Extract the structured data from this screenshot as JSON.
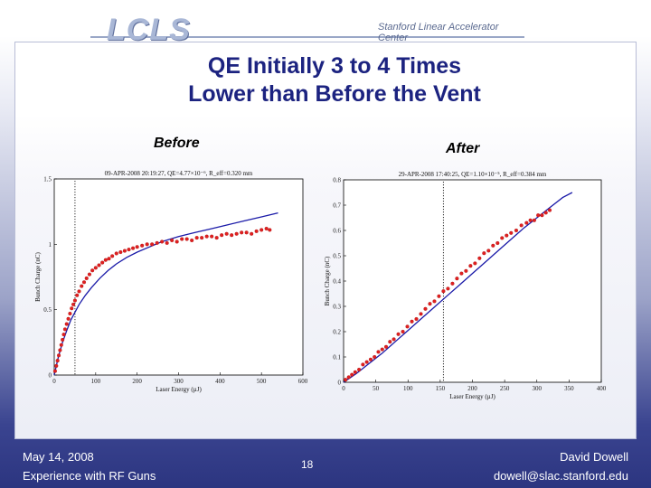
{
  "header": {
    "logo_text": "LCLS",
    "logo_subtitle": "Stanford Linear Accelerator Center"
  },
  "slide": {
    "title_line1": "QE Initially 3 to 4 Times",
    "title_line2": "Lower than Before the Vent",
    "label_before": "Before",
    "label_after": "After"
  },
  "colors": {
    "title": "#1c2380",
    "data_points": "#e02020",
    "fit_line": "#1a1aa8",
    "footer_bg": "#2c3580"
  },
  "chart_data": [
    {
      "type": "scatter",
      "title": "09-APR-2008 20:19:27,  QE=4.77×10⁻⁶,  R_eff=0.320 mm",
      "xlabel": "Laser Energy (µJ)",
      "ylabel": "Bunch Charge (nC)",
      "xlim": [
        0,
        600
      ],
      "ylim": [
        0,
        1.5
      ],
      "xticks": [
        0,
        100,
        200,
        300,
        400,
        500,
        600
      ],
      "yticks": [
        0,
        0.5,
        1,
        1.5
      ],
      "ytick_labels": [
        "0",
        "0.5",
        "1",
        "1.5"
      ],
      "vline_x": 50,
      "series": [
        {
          "name": "measured",
          "kind": "points",
          "x": [
            2,
            5,
            8,
            11,
            14,
            17,
            20,
            23,
            26,
            30,
            34,
            38,
            42,
            46,
            50,
            55,
            60,
            66,
            72,
            78,
            85,
            92,
            100,
            108,
            116,
            124,
            132,
            140,
            150,
            160,
            170,
            180,
            190,
            200,
            212,
            224,
            236,
            248,
            260,
            272,
            284,
            296,
            308,
            320,
            332,
            344,
            356,
            368,
            380,
            392,
            404,
            416,
            428,
            440,
            452,
            464,
            476,
            488,
            500,
            512,
            520
          ],
          "y": [
            0.03,
            0.07,
            0.11,
            0.15,
            0.19,
            0.23,
            0.27,
            0.31,
            0.35,
            0.39,
            0.43,
            0.47,
            0.51,
            0.54,
            0.57,
            0.61,
            0.64,
            0.68,
            0.71,
            0.74,
            0.77,
            0.8,
            0.82,
            0.84,
            0.86,
            0.88,
            0.89,
            0.91,
            0.93,
            0.94,
            0.95,
            0.96,
            0.97,
            0.98,
            0.99,
            1.0,
            1.0,
            1.01,
            1.02,
            1.01,
            1.03,
            1.02,
            1.04,
            1.04,
            1.03,
            1.05,
            1.05,
            1.06,
            1.06,
            1.05,
            1.07,
            1.08,
            1.07,
            1.08,
            1.09,
            1.09,
            1.08,
            1.1,
            1.11,
            1.12,
            1.11
          ]
        },
        {
          "name": "fit",
          "kind": "line",
          "x": [
            0,
            10,
            20,
            30,
            40,
            50,
            60,
            75,
            90,
            110,
            130,
            150,
            175,
            200,
            230,
            260,
            300,
            340,
            380,
            420,
            460,
            500,
            540
          ],
          "y": [
            0,
            0.14,
            0.25,
            0.34,
            0.42,
            0.48,
            0.54,
            0.61,
            0.67,
            0.74,
            0.8,
            0.85,
            0.9,
            0.94,
            0.98,
            1.02,
            1.06,
            1.09,
            1.12,
            1.15,
            1.18,
            1.21,
            1.24
          ]
        }
      ]
    },
    {
      "type": "scatter",
      "title": "29-APR-2008 17:40:25,  QE=1.10×10⁻⁵,  R_eff=0.384 mm",
      "xlabel": "Laser Energy (µJ)",
      "ylabel": "Bunch Charge (nC)",
      "xlim": [
        0,
        400
      ],
      "ylim": [
        0,
        0.8
      ],
      "xticks": [
        0,
        50,
        100,
        150,
        200,
        250,
        300,
        350,
        400
      ],
      "yticks": [
        0,
        0.1,
        0.2,
        0.3,
        0.4,
        0.5,
        0.6,
        0.7,
        0.8
      ],
      "ytick_labels": [
        "0",
        "0.1",
        "0.2",
        "0.3",
        "0.4",
        "0.5",
        "0.6",
        "0.7",
        "0.8"
      ],
      "vline_x": 155,
      "series": [
        {
          "name": "measured",
          "kind": "points",
          "x": [
            3,
            8,
            13,
            18,
            24,
            30,
            36,
            42,
            48,
            54,
            60,
            66,
            72,
            78,
            85,
            92,
            99,
            106,
            113,
            120,
            127,
            134,
            141,
            148,
            155,
            162,
            169,
            176,
            183,
            190,
            197,
            204,
            211,
            218,
            225,
            232,
            239,
            246,
            253,
            260,
            268,
            276,
            284,
            290,
            296,
            302,
            308,
            314,
            320
          ],
          "y": [
            0.01,
            0.02,
            0.03,
            0.04,
            0.05,
            0.07,
            0.08,
            0.09,
            0.1,
            0.12,
            0.13,
            0.14,
            0.16,
            0.17,
            0.19,
            0.2,
            0.22,
            0.24,
            0.25,
            0.27,
            0.29,
            0.31,
            0.32,
            0.34,
            0.36,
            0.37,
            0.39,
            0.41,
            0.43,
            0.44,
            0.46,
            0.47,
            0.49,
            0.51,
            0.52,
            0.54,
            0.55,
            0.57,
            0.58,
            0.59,
            0.6,
            0.62,
            0.63,
            0.64,
            0.64,
            0.66,
            0.66,
            0.67,
            0.68
          ]
        },
        {
          "name": "fit",
          "kind": "line",
          "x": [
            0,
            20,
            40,
            60,
            80,
            100,
            120,
            140,
            160,
            180,
            200,
            220,
            240,
            260,
            280,
            300,
            320,
            340,
            355
          ],
          "y": [
            0,
            0.035,
            0.075,
            0.115,
            0.16,
            0.205,
            0.25,
            0.295,
            0.34,
            0.385,
            0.43,
            0.475,
            0.52,
            0.565,
            0.61,
            0.65,
            0.69,
            0.73,
            0.75
          ]
        }
      ]
    }
  ],
  "footer": {
    "date": "May 14, 2008",
    "topic": "Experience with RF Guns",
    "page": "18",
    "author": "David Dowell",
    "email": "dowell@slac.stanford.edu"
  }
}
